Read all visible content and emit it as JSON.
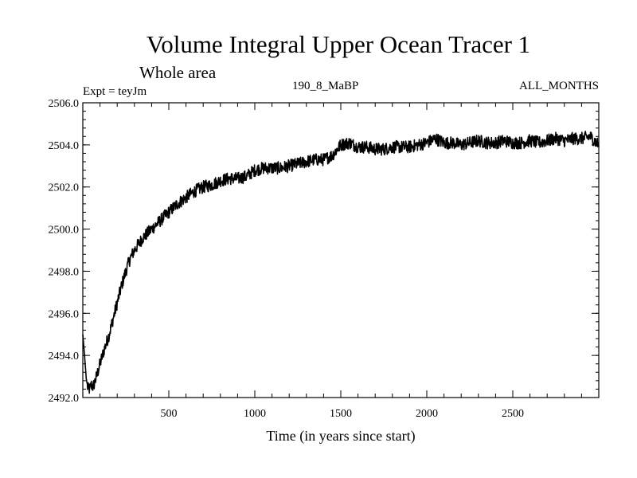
{
  "chart_data": {
    "type": "line",
    "title": "Volume Integral Upper Ocean Tracer 1",
    "subtitle": "Whole area",
    "expt_label": "Expt = teyJm",
    "run_label": "190_8_MaBP",
    "months_label": "ALL_MONTHS",
    "xlabel": "Time (in years since start)",
    "ylabel": "",
    "xlim": [
      0,
      3000
    ],
    "ylim": [
      2492.0,
      2506.0
    ],
    "x_ticks": [
      500,
      1000,
      1500,
      2000,
      2500
    ],
    "x_tick_labels": [
      "500",
      "1000",
      "1500",
      "2000",
      "2500"
    ],
    "y_ticks": [
      2492.0,
      2494.0,
      2496.0,
      2498.0,
      2500.0,
      2502.0,
      2504.0,
      2506.0
    ],
    "y_tick_labels": [
      "2492.0",
      "2494.0",
      "2496.0",
      "2498.0",
      "2500.0",
      "2502.0",
      "2504.0",
      "2506.0"
    ],
    "grid": false,
    "series": [
      {
        "name": "Tracer 1",
        "color": "#000000",
        "x": [
          0,
          10,
          20,
          30,
          40,
          50,
          60,
          80,
          100,
          125,
          150,
          175,
          200,
          225,
          250,
          275,
          300,
          325,
          350,
          375,
          400,
          450,
          500,
          550,
          600,
          650,
          700,
          750,
          800,
          850,
          900,
          950,
          1000,
          1050,
          1100,
          1150,
          1200,
          1250,
          1300,
          1350,
          1400,
          1450,
          1500,
          1550,
          1600,
          1650,
          1700,
          1750,
          1800,
          1850,
          1900,
          1950,
          2000,
          2050,
          2100,
          2150,
          2200,
          2250,
          2300,
          2350,
          2400,
          2450,
          2500,
          2550,
          2600,
          2650,
          2700,
          2750,
          2800,
          2850,
          2900,
          2950,
          3000
        ],
        "values": [
          2495.0,
          2494.0,
          2492.9,
          2492.4,
          2492.4,
          2492.6,
          2492.5,
          2493.0,
          2493.6,
          2494.3,
          2494.9,
          2495.7,
          2496.5,
          2497.3,
          2498.0,
          2498.6,
          2499.0,
          2499.3,
          2499.6,
          2499.8,
          2500.0,
          2500.4,
          2500.8,
          2501.2,
          2501.5,
          2501.8,
          2502.0,
          2502.1,
          2502.3,
          2502.4,
          2502.4,
          2502.5,
          2502.8,
          2502.9,
          2502.9,
          2502.9,
          2503.0,
          2503.1,
          2503.2,
          2503.3,
          2503.3,
          2503.5,
          2504.0,
          2504.1,
          2503.9,
          2503.9,
          2503.8,
          2503.8,
          2503.9,
          2503.9,
          2503.9,
          2504.0,
          2504.1,
          2504.3,
          2504.1,
          2504.1,
          2504.0,
          2504.1,
          2504.2,
          2504.1,
          2504.1,
          2504.2,
          2504.1,
          2504.1,
          2504.2,
          2504.1,
          2504.2,
          2504.3,
          2504.2,
          2504.3,
          2504.3,
          2504.4,
          2504.0
        ],
        "noise_amplitude": 0.3
      }
    ]
  }
}
